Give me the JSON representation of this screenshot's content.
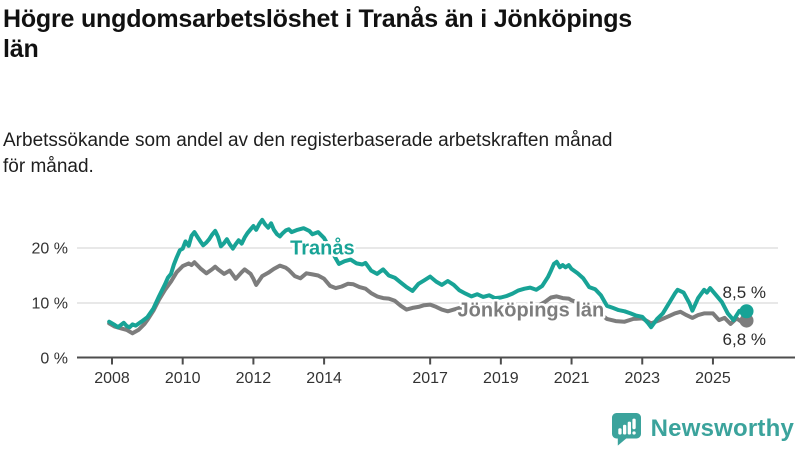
{
  "header": {
    "title": "Högre ungdomsarbetslöshet i Tranås än i Jönköpings län",
    "title_lines": [
      "Högre ungdomsarbetslöshet i Tranås än i Jönköpings",
      "län"
    ],
    "subtitle": "Arbetssökande som andel av den registerbaserade arbetskraften månad för månad.",
    "subtitle_lines": [
      "Arbetssökande som andel av den registerbaserade arbetskraften månad",
      "för månad."
    ]
  },
  "footer": {
    "brand": "Newsworthy",
    "brand_color": "#3ba39c",
    "logo_icon": "newsworthy-chart-bubble-icon"
  },
  "chart_data": {
    "type": "line",
    "title": "Högre ungdomsarbetslöshet i Tranås än i Jönköpings län",
    "subtitle": "Arbetssökande som andel av den registerbaserade arbetskraften månad för månad.",
    "unit": "%",
    "grid": "horizontal",
    "legend_position": "inline-labels",
    "x_range": [
      2007.9,
      2026.1
    ],
    "y_range": [
      0,
      27
    ],
    "x_ticks": [
      2008,
      2010,
      2012,
      2014,
      2017,
      2019,
      2021,
      2023,
      2025
    ],
    "x_tick_labels": [
      "2008",
      "2010",
      "2012",
      "2014",
      "2017",
      "2019",
      "2021",
      "2023",
      "2025"
    ],
    "y_ticks": [
      0,
      10,
      20
    ],
    "y_tick_labels": [
      "0 %",
      "10 %",
      "20 %"
    ],
    "series": [
      {
        "name": "Jönköpings län",
        "slug": "jonkopings-lan",
        "color": "#7d7d7d",
        "end_value": 6.8,
        "end_label": "6,8 %",
        "end_label_position": "below",
        "label_anchor": {
          "year": 2019.85,
          "value": 8.7
        },
        "end_dot": {
          "year": 2025.95,
          "value": 6.8
        },
        "points": [
          [
            2007.92,
            6.3
          ],
          [
            2008.08,
            5.7
          ],
          [
            2008.25,
            5.4
          ],
          [
            2008.42,
            5.1
          ],
          [
            2008.58,
            4.5
          ],
          [
            2008.75,
            5.1
          ],
          [
            2008.92,
            6.2
          ],
          [
            2009.0,
            6.9
          ],
          [
            2009.17,
            8.6
          ],
          [
            2009.33,
            10.6
          ],
          [
            2009.5,
            12.4
          ],
          [
            2009.67,
            13.9
          ],
          [
            2009.83,
            15.6
          ],
          [
            2010.0,
            16.7
          ],
          [
            2010.17,
            17.2
          ],
          [
            2010.25,
            16.9
          ],
          [
            2010.33,
            17.4
          ],
          [
            2010.5,
            16.3
          ],
          [
            2010.67,
            15.4
          ],
          [
            2010.83,
            16.1
          ],
          [
            2010.92,
            16.6
          ],
          [
            2011.0,
            16.1
          ],
          [
            2011.17,
            15.3
          ],
          [
            2011.33,
            15.9
          ],
          [
            2011.42,
            15.1
          ],
          [
            2011.5,
            14.4
          ],
          [
            2011.67,
            15.6
          ],
          [
            2011.75,
            16.1
          ],
          [
            2011.92,
            15.3
          ],
          [
            2012.0,
            14.4
          ],
          [
            2012.08,
            13.3
          ],
          [
            2012.25,
            14.9
          ],
          [
            2012.42,
            15.5
          ],
          [
            2012.58,
            16.2
          ],
          [
            2012.75,
            16.8
          ],
          [
            2012.92,
            16.4
          ],
          [
            2013.0,
            16.0
          ],
          [
            2013.17,
            14.9
          ],
          [
            2013.33,
            14.5
          ],
          [
            2013.5,
            15.4
          ],
          [
            2013.67,
            15.2
          ],
          [
            2013.83,
            15.0
          ],
          [
            2014.0,
            14.4
          ],
          [
            2014.17,
            13.1
          ],
          [
            2014.33,
            12.7
          ],
          [
            2014.5,
            13.0
          ],
          [
            2014.67,
            13.5
          ],
          [
            2014.83,
            13.4
          ],
          [
            2015.0,
            12.9
          ],
          [
            2015.17,
            12.6
          ],
          [
            2015.33,
            11.8
          ],
          [
            2015.5,
            11.2
          ],
          [
            2015.67,
            10.9
          ],
          [
            2015.83,
            10.8
          ],
          [
            2016.0,
            10.4
          ],
          [
            2016.17,
            9.5
          ],
          [
            2016.33,
            8.8
          ],
          [
            2016.5,
            9.1
          ],
          [
            2016.67,
            9.3
          ],
          [
            2016.83,
            9.6
          ],
          [
            2017.0,
            9.7
          ],
          [
            2017.17,
            9.3
          ],
          [
            2017.33,
            8.8
          ],
          [
            2017.5,
            8.5
          ],
          [
            2017.67,
            8.8
          ],
          [
            2017.83,
            9.1
          ],
          [
            2018.0,
            8.8
          ],
          [
            2018.17,
            8.5
          ],
          [
            2018.33,
            8.3
          ],
          [
            2018.5,
            8.1
          ],
          [
            2018.67,
            8.4
          ],
          [
            2018.83,
            8.2
          ],
          [
            2019.0,
            8.3
          ],
          [
            2019.17,
            8.5
          ],
          [
            2019.33,
            8.8
          ],
          [
            2019.5,
            9.0
          ],
          [
            2019.67,
            9.2
          ],
          [
            2019.83,
            9.4
          ],
          [
            2020.0,
            9.3
          ],
          [
            2020.25,
            10.2
          ],
          [
            2020.42,
            11.0
          ],
          [
            2020.58,
            11.2
          ],
          [
            2020.75,
            10.9
          ],
          [
            2020.92,
            10.8
          ],
          [
            2021.0,
            10.5
          ],
          [
            2021.25,
            9.9
          ],
          [
            2021.5,
            9.2
          ],
          [
            2021.75,
            8.4
          ],
          [
            2022.0,
            7.1
          ],
          [
            2022.25,
            6.7
          ],
          [
            2022.5,
            6.6
          ],
          [
            2022.75,
            7.1
          ],
          [
            2023.0,
            7.2
          ],
          [
            2023.25,
            6.3
          ],
          [
            2023.5,
            6.9
          ],
          [
            2023.75,
            7.6
          ],
          [
            2023.92,
            8.1
          ],
          [
            2024.08,
            8.4
          ],
          [
            2024.25,
            7.8
          ],
          [
            2024.42,
            7.3
          ],
          [
            2024.58,
            7.8
          ],
          [
            2024.75,
            8.1
          ],
          [
            2025.0,
            8.1
          ],
          [
            2025.17,
            6.9
          ],
          [
            2025.33,
            7.3
          ],
          [
            2025.5,
            6.2
          ],
          [
            2025.67,
            7.2
          ],
          [
            2025.83,
            6.5
          ],
          [
            2025.95,
            6.8
          ]
        ]
      },
      {
        "name": "Tranås",
        "slug": "tranas",
        "color": "#18a396",
        "end_value": 8.5,
        "end_label": "8,5 %",
        "end_label_position": "above",
        "label_anchor": {
          "year": 2013.95,
          "value": 20.0
        },
        "end_dot": {
          "year": 2025.95,
          "value": 8.5
        },
        "points": [
          [
            2007.92,
            6.6
          ],
          [
            2008.08,
            6.0
          ],
          [
            2008.17,
            5.6
          ],
          [
            2008.33,
            6.4
          ],
          [
            2008.42,
            5.8
          ],
          [
            2008.5,
            5.6
          ],
          [
            2008.58,
            6.1
          ],
          [
            2008.67,
            5.9
          ],
          [
            2008.83,
            6.6
          ],
          [
            2009.0,
            7.4
          ],
          [
            2009.17,
            9.0
          ],
          [
            2009.33,
            11.2
          ],
          [
            2009.5,
            13.4
          ],
          [
            2009.58,
            14.6
          ],
          [
            2009.67,
            15.3
          ],
          [
            2009.75,
            17.0
          ],
          [
            2009.83,
            18.3
          ],
          [
            2009.92,
            19.6
          ],
          [
            2010.0,
            19.9
          ],
          [
            2010.08,
            21.2
          ],
          [
            2010.17,
            20.4
          ],
          [
            2010.25,
            22.2
          ],
          [
            2010.33,
            22.9
          ],
          [
            2010.42,
            22.0
          ],
          [
            2010.5,
            21.2
          ],
          [
            2010.58,
            20.5
          ],
          [
            2010.67,
            21.0
          ],
          [
            2010.75,
            21.6
          ],
          [
            2010.83,
            22.4
          ],
          [
            2010.92,
            23.1
          ],
          [
            2011.0,
            22.0
          ],
          [
            2011.08,
            20.3
          ],
          [
            2011.17,
            20.9
          ],
          [
            2011.25,
            21.6
          ],
          [
            2011.33,
            20.7
          ],
          [
            2011.42,
            19.9
          ],
          [
            2011.5,
            20.7
          ],
          [
            2011.58,
            21.4
          ],
          [
            2011.67,
            20.8
          ],
          [
            2011.75,
            21.9
          ],
          [
            2011.83,
            22.7
          ],
          [
            2011.92,
            23.4
          ],
          [
            2012.0,
            24.0
          ],
          [
            2012.08,
            23.3
          ],
          [
            2012.17,
            24.4
          ],
          [
            2012.25,
            25.1
          ],
          [
            2012.33,
            24.3
          ],
          [
            2012.42,
            23.7
          ],
          [
            2012.5,
            24.5
          ],
          [
            2012.58,
            23.3
          ],
          [
            2012.67,
            22.5
          ],
          [
            2012.75,
            22.1
          ],
          [
            2012.83,
            22.7
          ],
          [
            2012.92,
            23.2
          ],
          [
            2013.0,
            23.4
          ],
          [
            2013.08,
            22.9
          ],
          [
            2013.25,
            23.3
          ],
          [
            2013.42,
            23.6
          ],
          [
            2013.58,
            23.1
          ],
          [
            2013.67,
            22.5
          ],
          [
            2013.83,
            22.9
          ],
          [
            2014.0,
            21.8
          ],
          [
            2014.08,
            20.9
          ],
          [
            2014.25,
            19.0
          ],
          [
            2014.42,
            17.1
          ],
          [
            2014.58,
            17.6
          ],
          [
            2014.75,
            17.9
          ],
          [
            2014.92,
            17.2
          ],
          [
            2015.08,
            17.0
          ],
          [
            2015.17,
            17.3
          ],
          [
            2015.33,
            15.9
          ],
          [
            2015.5,
            15.3
          ],
          [
            2015.67,
            16.1
          ],
          [
            2015.83,
            15.0
          ],
          [
            2016.0,
            14.6
          ],
          [
            2016.17,
            13.7
          ],
          [
            2016.33,
            12.9
          ],
          [
            2016.5,
            12.2
          ],
          [
            2016.67,
            13.5
          ],
          [
            2016.83,
            14.1
          ],
          [
            2017.0,
            14.8
          ],
          [
            2017.17,
            13.9
          ],
          [
            2017.33,
            13.3
          ],
          [
            2017.5,
            14.0
          ],
          [
            2017.67,
            13.3
          ],
          [
            2017.83,
            12.3
          ],
          [
            2018.0,
            11.7
          ],
          [
            2018.17,
            11.2
          ],
          [
            2018.33,
            11.6
          ],
          [
            2018.5,
            11.1
          ],
          [
            2018.67,
            11.4
          ],
          [
            2018.83,
            10.9
          ],
          [
            2019.0,
            11.0
          ],
          [
            2019.17,
            11.3
          ],
          [
            2019.33,
            11.7
          ],
          [
            2019.5,
            12.3
          ],
          [
            2019.67,
            12.6
          ],
          [
            2019.83,
            12.8
          ],
          [
            2020.0,
            12.4
          ],
          [
            2020.17,
            13.1
          ],
          [
            2020.33,
            14.7
          ],
          [
            2020.42,
            15.9
          ],
          [
            2020.5,
            17.1
          ],
          [
            2020.58,
            17.5
          ],
          [
            2020.67,
            16.5
          ],
          [
            2020.75,
            16.9
          ],
          [
            2020.83,
            16.5
          ],
          [
            2020.92,
            16.9
          ],
          [
            2021.0,
            16.2
          ],
          [
            2021.17,
            15.4
          ],
          [
            2021.33,
            14.5
          ],
          [
            2021.5,
            12.9
          ],
          [
            2021.67,
            12.5
          ],
          [
            2021.83,
            11.4
          ],
          [
            2022.0,
            9.5
          ],
          [
            2022.17,
            9.1
          ],
          [
            2022.33,
            8.7
          ],
          [
            2022.5,
            8.5
          ],
          [
            2022.67,
            8.1
          ],
          [
            2022.83,
            7.7
          ],
          [
            2023.0,
            7.5
          ],
          [
            2023.17,
            6.3
          ],
          [
            2023.25,
            5.6
          ],
          [
            2023.42,
            7.1
          ],
          [
            2023.58,
            8.1
          ],
          [
            2023.75,
            9.9
          ],
          [
            2023.92,
            11.7
          ],
          [
            2024.0,
            12.4
          ],
          [
            2024.17,
            11.9
          ],
          [
            2024.33,
            10.0
          ],
          [
            2024.42,
            8.6
          ],
          [
            2024.58,
            10.9
          ],
          [
            2024.75,
            12.4
          ],
          [
            2024.83,
            11.9
          ],
          [
            2024.92,
            12.7
          ],
          [
            2025.08,
            11.5
          ],
          [
            2025.25,
            10.2
          ],
          [
            2025.42,
            8.1
          ],
          [
            2025.58,
            6.9
          ],
          [
            2025.75,
            8.6
          ],
          [
            2025.95,
            8.5
          ]
        ]
      }
    ]
  }
}
